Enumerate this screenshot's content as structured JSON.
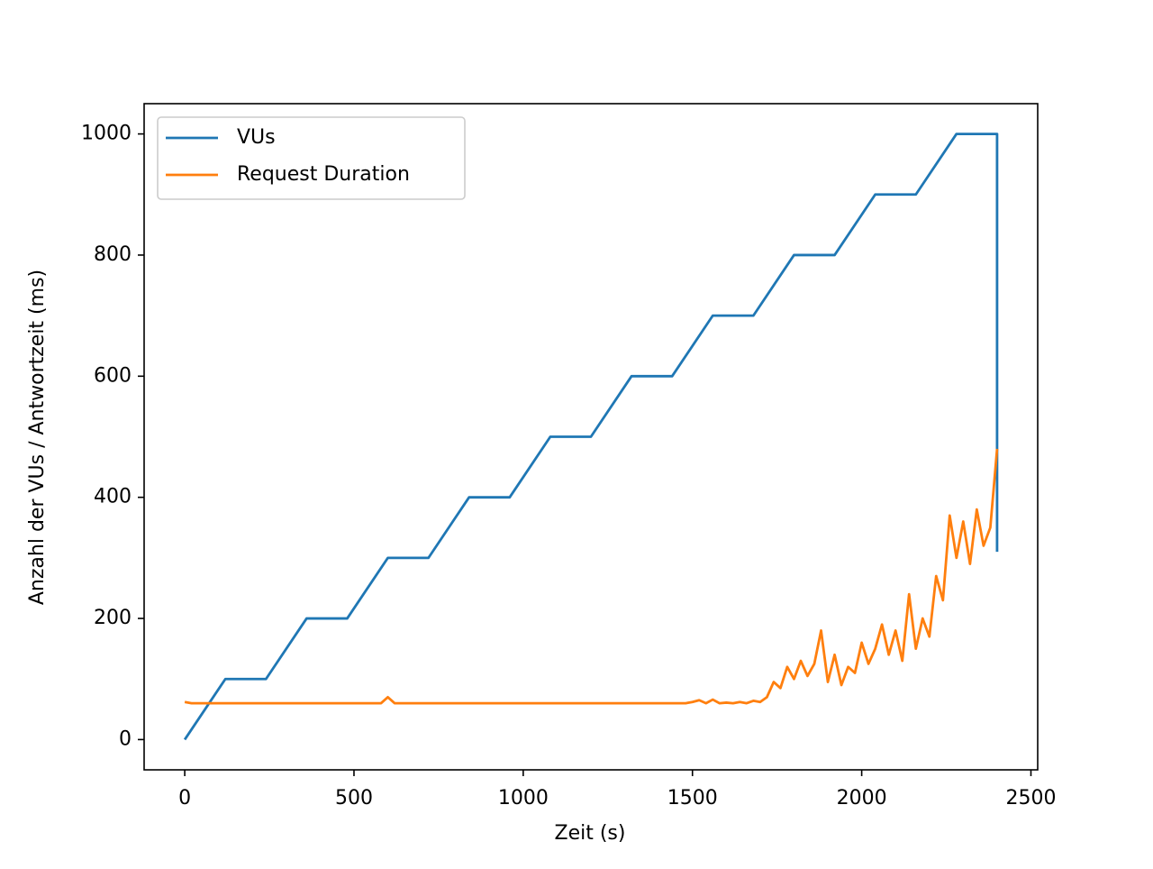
{
  "chart_data": {
    "type": "line",
    "xlabel": "Zeit (s)",
    "ylabel": "Anzahl der VUs / Antwortzeit (ms)",
    "xlim": [
      -120,
      2520
    ],
    "ylim": [
      -50,
      1050
    ],
    "xticks": [
      0,
      500,
      1000,
      1500,
      2000,
      2500
    ],
    "yticks": [
      0,
      200,
      400,
      600,
      800,
      1000
    ],
    "legend": "upper left",
    "series": [
      {
        "name": "VUs",
        "color": "#1f77b4",
        "x": [
          0,
          120,
          240,
          360,
          480,
          600,
          720,
          840,
          960,
          1080,
          1200,
          1320,
          1440,
          1560,
          1680,
          1800,
          1920,
          2040,
          2160,
          2280,
          2400,
          2400
        ],
        "values": [
          0,
          100,
          100,
          200,
          200,
          300,
          300,
          400,
          400,
          500,
          500,
          600,
          600,
          700,
          700,
          800,
          800,
          900,
          900,
          1000,
          1000,
          310
        ]
      },
      {
        "name": "Request Duration",
        "color": "#ff7f0e",
        "x": [
          0,
          20,
          40,
          60,
          80,
          100,
          120,
          140,
          160,
          180,
          200,
          220,
          240,
          260,
          280,
          300,
          320,
          340,
          360,
          380,
          400,
          420,
          440,
          460,
          480,
          500,
          520,
          540,
          560,
          580,
          600,
          620,
          640,
          660,
          680,
          700,
          720,
          740,
          760,
          780,
          800,
          820,
          840,
          860,
          880,
          900,
          920,
          940,
          960,
          980,
          1000,
          1020,
          1040,
          1060,
          1080,
          1100,
          1120,
          1140,
          1160,
          1180,
          1200,
          1220,
          1240,
          1260,
          1280,
          1300,
          1320,
          1340,
          1360,
          1380,
          1400,
          1420,
          1440,
          1460,
          1480,
          1500,
          1520,
          1540,
          1560,
          1580,
          1600,
          1620,
          1640,
          1660,
          1680,
          1700,
          1720,
          1740,
          1760,
          1780,
          1800,
          1820,
          1840,
          1860,
          1880,
          1900,
          1920,
          1940,
          1960,
          1980,
          2000,
          2020,
          2040,
          2060,
          2080,
          2100,
          2120,
          2140,
          2160,
          2180,
          2200,
          2220,
          2240,
          2260,
          2280,
          2300,
          2320,
          2340,
          2360,
          2380,
          2400
        ],
        "values": [
          62,
          60,
          60,
          60,
          60,
          60,
          60,
          60,
          60,
          60,
          60,
          60,
          60,
          60,
          60,
          60,
          60,
          60,
          60,
          60,
          60,
          60,
          60,
          60,
          60,
          60,
          60,
          60,
          60,
          60,
          70,
          60,
          60,
          60,
          60,
          60,
          60,
          60,
          60,
          60,
          60,
          60,
          60,
          60,
          60,
          60,
          60,
          60,
          60,
          60,
          60,
          60,
          60,
          60,
          60,
          60,
          60,
          60,
          60,
          60,
          60,
          60,
          60,
          60,
          60,
          60,
          60,
          60,
          60,
          60,
          60,
          60,
          60,
          60,
          60,
          62,
          65,
          60,
          66,
          60,
          61,
          60,
          62,
          60,
          64,
          62,
          70,
          95,
          85,
          120,
          100,
          130,
          105,
          125,
          180,
          95,
          140,
          90,
          120,
          110,
          160,
          125,
          150,
          190,
          140,
          180,
          130,
          240,
          150,
          200,
          170,
          270,
          230,
          370,
          300,
          360,
          290,
          380,
          320,
          350,
          480
        ]
      }
    ]
  }
}
